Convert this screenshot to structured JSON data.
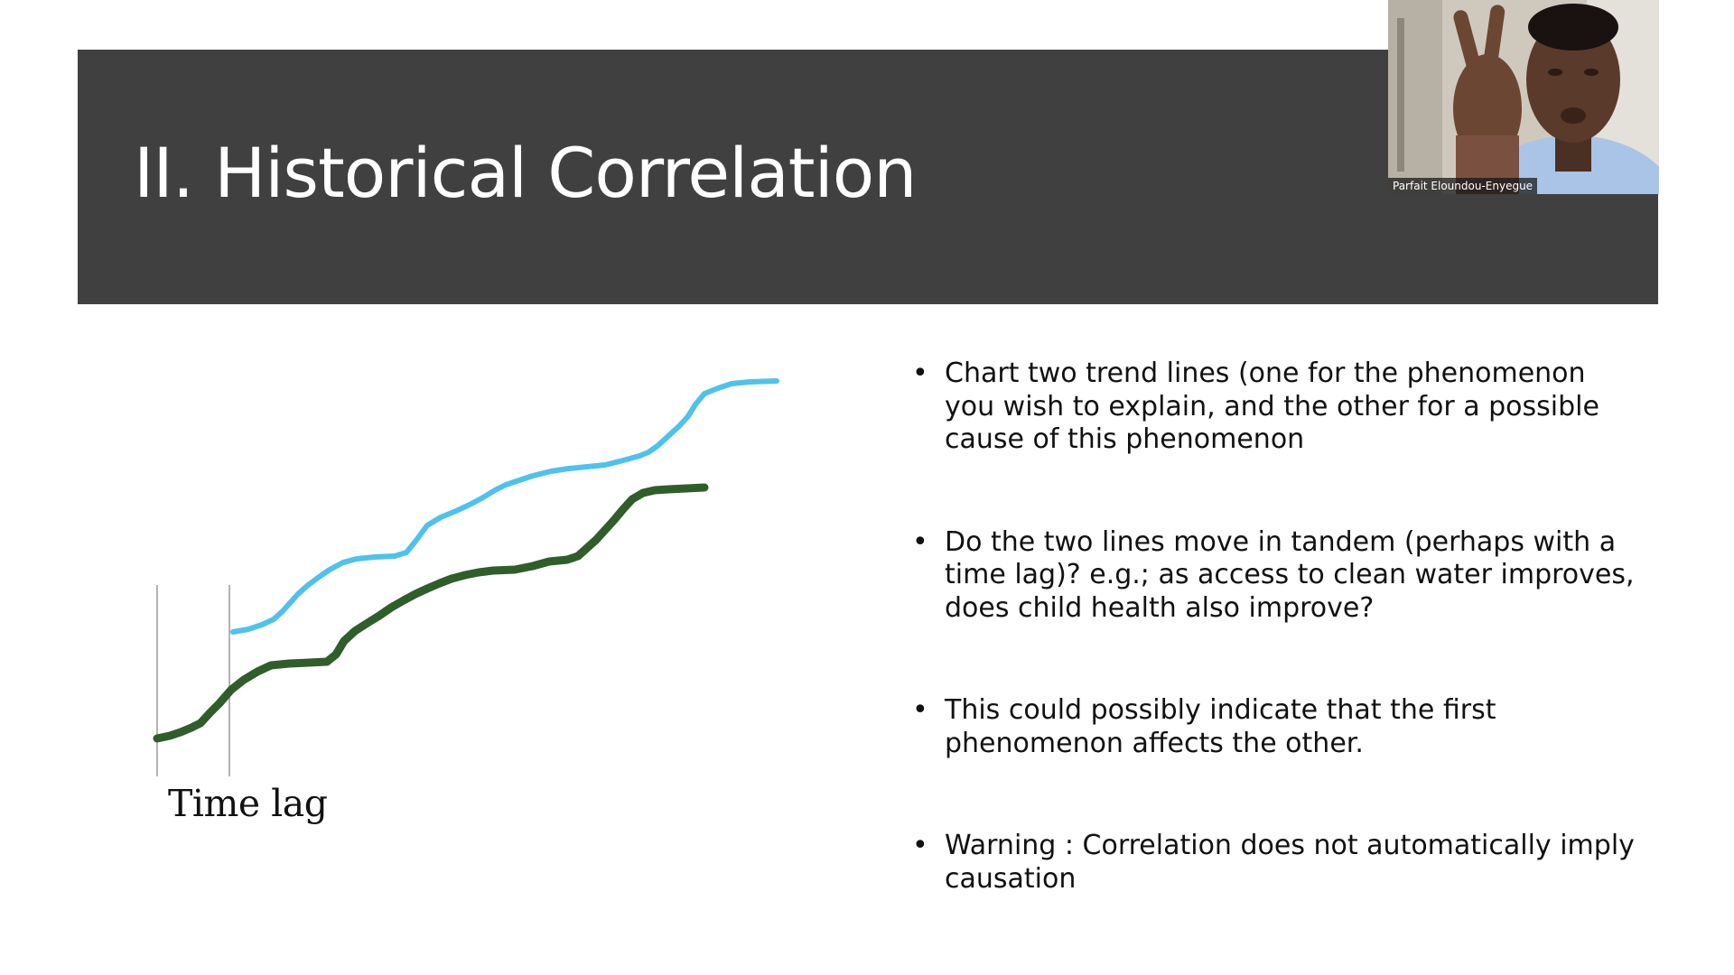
{
  "slide": {
    "title": "II. Historical Correlation",
    "chart_label": "Time lag",
    "bullets": [
      "Chart two trend lines (one for the phenomenon you wish to explain, and the other for a possible cause of this phenomenon",
      "Do the two lines move in tandem (perhaps with a time lag)? e.g.; as access to clean water improves, does child health also improve?",
      "This could possibly indicate that the first phenomenon affects the other.",
      "Warning : Correlation does not automatically imply causation"
    ],
    "bullet_symbol": "•"
  },
  "webcam": {
    "participant_name": "Parfait Eloundou-Enyegue"
  },
  "colors": {
    "title_bar": "#404040",
    "line_cause": "#4ec2ec",
    "line_effect": "#2f5e2a"
  }
}
